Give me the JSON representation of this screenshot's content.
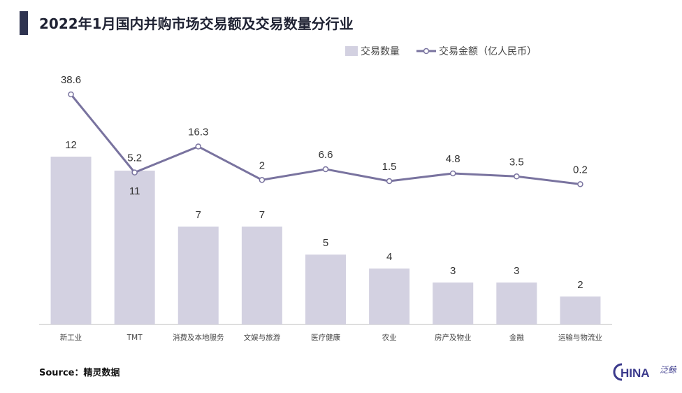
{
  "header": {
    "title": "2022年1月国内并购市场交易额及交易数量分行业"
  },
  "legend": {
    "bar_label": "交易数量",
    "line_label": "交易金额（亿人民币）"
  },
  "footer": {
    "source": "Source：精灵数据"
  },
  "logo": {
    "text": "HINA",
    "ornament": "C",
    "stamp": "泛鲸"
  },
  "colors": {
    "bar": "#d3d1e1",
    "line": "#79739f",
    "title_bar": "#2e3350",
    "logo": "#3b3a8c"
  },
  "chart_data": {
    "type": "bar",
    "title": "2022年1月国内并购市场交易额及交易数量分行业",
    "categories": [
      "新工业",
      "TMT",
      "消费及本地服务",
      "文娱与旅游",
      "医疗健康",
      "农业",
      "房产及物业",
      "金融",
      "运输与物流业"
    ],
    "series": [
      {
        "name": "交易数量",
        "type": "bar",
        "values": [
          12,
          11,
          7,
          7,
          5,
          4,
          3,
          3,
          2
        ],
        "ylim": [
          0,
          12
        ]
      },
      {
        "name": "交易金额（亿人民币）",
        "type": "line",
        "values": [
          38.6,
          5.2,
          16.3,
          2,
          6.6,
          1.5,
          4.8,
          3.5,
          0.2
        ],
        "ylim": [
          0,
          38.6
        ]
      }
    ],
    "legend_position": "top-right",
    "grid": false
  }
}
